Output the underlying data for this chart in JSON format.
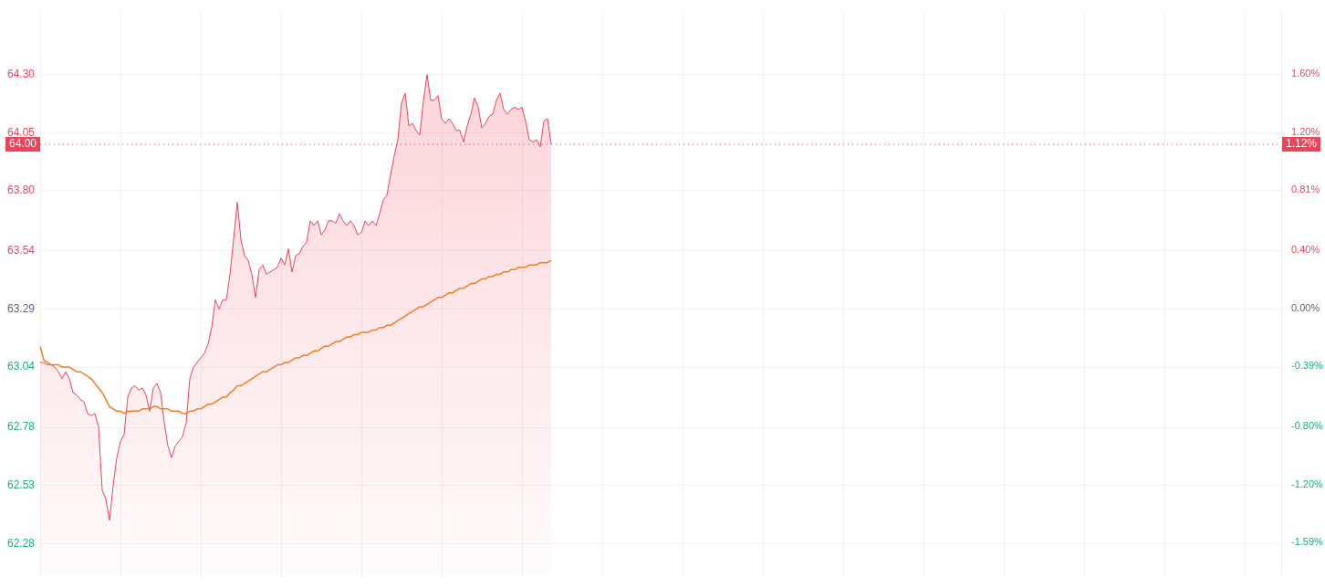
{
  "chart_data": {
    "type": "area",
    "categories": [
      null,
      null,
      null,
      null,
      null,
      null,
      null,
      null,
      null,
      null,
      null,
      null,
      null,
      null,
      null,
      null,
      null,
      null,
      null,
      null,
      null,
      null,
      null,
      null,
      null,
      null,
      null,
      null,
      null,
      null,
      null,
      null,
      null,
      null,
      null,
      null,
      null,
      null,
      null,
      null,
      null,
      null,
      null,
      null,
      null,
      null,
      null,
      null,
      null,
      null,
      null,
      null,
      null,
      null,
      null,
      null,
      null,
      null,
      null,
      null,
      null,
      null,
      null,
      null,
      null,
      null,
      null,
      null,
      null,
      null,
      null,
      null,
      null,
      null,
      null,
      null,
      null,
      null,
      null,
      null,
      null,
      null,
      null,
      null,
      null,
      null,
      null,
      null,
      null,
      null,
      null,
      null,
      null,
      null,
      null,
      null,
      null,
      null,
      null,
      null,
      null,
      null,
      null,
      null,
      null,
      null,
      null,
      null,
      null,
      null,
      null,
      null,
      null,
      null,
      null,
      null,
      null,
      null,
      null,
      null,
      null,
      null,
      null,
      null,
      null,
      null,
      null,
      null,
      null,
      null,
      null,
      null,
      null,
      null,
      null,
      null,
      null,
      null,
      null,
      null,
      null,
      null,
      null,
      null,
      null,
      null,
      null,
      null,
      null,
      null,
      null,
      null,
      null,
      null,
      null,
      null,
      null,
      null,
      null,
      null,
      null,
      null,
      null,
      null,
      null,
      null,
      null,
      null,
      null,
      null,
      null,
      null,
      null,
      null,
      null,
      null,
      null,
      null,
      null,
      null,
      null,
      null,
      null,
      null,
      null,
      null,
      null,
      null,
      null,
      null,
      null,
      null,
      null,
      null,
      null,
      null,
      null,
      null,
      null,
      null,
      null,
      null,
      null,
      null,
      null,
      null,
      null,
      null,
      null,
      null,
      null,
      null,
      null,
      null,
      null,
      null,
      null,
      null,
      null,
      null,
      null,
      null,
      null,
      null,
      null,
      null,
      null,
      null,
      null,
      null,
      null,
      null,
      null,
      null,
      null,
      null,
      null,
      null,
      null,
      null,
      null,
      null,
      null,
      null,
      null,
      null,
      null,
      null,
      null,
      null,
      null,
      null,
      null,
      null,
      null,
      null,
      null,
      null,
      null,
      null,
      null,
      null,
      null,
      null,
      null,
      null,
      null,
      null,
      null,
      null,
      null,
      null,
      null,
      null,
      null,
      null,
      null,
      null,
      null,
      null,
      null,
      null,
      null,
      null,
      null,
      null,
      null,
      null,
      null,
      null,
      null,
      null,
      null,
      null,
      null,
      null,
      null,
      null,
      null,
      null,
      null,
      null,
      null,
      null,
      null,
      null,
      null,
      null,
      null,
      null,
      null,
      null,
      null,
      null,
      null,
      null,
      null,
      null,
      null,
      null,
      null,
      null,
      null,
      null,
      null,
      null,
      null,
      null,
      null,
      null,
      null,
      null,
      null,
      null,
      null,
      null,
      null,
      null,
      null,
      null,
      null
    ],
    "series": [
      {
        "type": "area",
        "color": "#f0435a",
        "values": [
          63.06,
          63.06,
          63.05,
          63.05,
          63.04,
          63.02,
          62.99,
          63.02,
          62.99,
          62.93,
          62.92,
          62.9,
          62.89,
          62.84,
          62.83,
          62.84,
          62.78,
          62.51,
          62.47,
          62.38,
          62.53,
          62.65,
          62.72,
          62.75,
          62.91,
          62.95,
          62.96,
          62.94,
          62.95,
          62.92,
          62.85,
          62.95,
          62.97,
          62.93,
          62.8,
          62.7,
          62.65,
          62.7,
          62.72,
          62.74,
          62.8,
          62.99,
          63.04,
          63.06,
          63.08,
          63.1,
          63.14,
          63.21,
          63.33,
          63.29,
          63.33,
          63.33,
          63.44,
          63.59,
          63.75,
          63.59,
          63.52,
          63.5,
          63.44,
          63.34,
          63.46,
          63.48,
          63.44,
          63.45,
          63.46,
          63.47,
          63.51,
          63.48,
          63.55,
          63.45,
          63.52,
          63.53,
          63.56,
          63.58,
          63.67,
          63.65,
          63.67,
          63.61,
          63.63,
          63.67,
          63.67,
          63.66,
          63.7,
          63.67,
          63.65,
          63.67,
          63.65,
          63.61,
          63.62,
          63.67,
          63.65,
          63.67,
          63.65,
          63.7,
          63.76,
          63.78,
          63.87,
          63.95,
          64.02,
          64.18,
          64.22,
          64.08,
          64.09,
          64.06,
          64.04,
          64.19,
          64.3,
          64.19,
          64.19,
          64.21,
          64.11,
          64.09,
          64.11,
          64.09,
          64.06,
          64.06,
          64.01,
          64.08,
          64.13,
          64.2,
          64.16,
          64.07,
          64.09,
          64.12,
          64.13,
          64.19,
          64.22,
          64.15,
          64.13,
          64.15,
          64.16,
          64.15,
          64.16,
          64.1,
          64.02,
          64.01,
          64.02,
          63.99,
          64.1,
          64.11,
          64.0,
          null,
          null,
          null,
          null,
          null,
          null,
          null,
          null,
          null,
          null,
          null,
          null,
          null,
          null,
          null,
          null,
          null,
          null,
          null,
          null,
          null,
          null,
          null,
          null,
          null,
          null,
          null,
          null,
          null,
          null,
          null,
          null,
          null,
          null,
          null,
          null,
          null,
          null,
          null,
          null,
          null,
          null,
          null,
          null,
          null,
          null,
          null,
          null,
          null,
          null,
          null,
          null,
          null,
          null,
          null,
          null,
          null,
          null,
          null,
          null,
          null,
          null,
          null,
          null,
          null,
          null,
          null,
          null,
          null,
          null,
          null,
          null,
          null,
          null,
          null,
          null,
          null,
          null,
          null,
          null,
          null,
          null,
          null,
          null,
          null,
          null,
          null,
          null,
          null,
          null,
          null,
          null,
          null,
          null,
          null,
          null,
          null,
          null,
          null,
          null,
          null,
          null,
          null,
          null,
          null,
          null,
          null,
          null,
          null,
          null,
          null,
          null,
          null,
          null,
          null,
          null,
          null,
          null,
          null,
          null,
          null,
          null,
          null,
          null,
          null,
          null,
          null,
          null,
          null,
          null,
          null,
          null,
          null,
          null,
          null,
          null,
          null,
          null,
          null,
          null,
          null,
          null,
          null,
          null,
          null,
          null,
          null,
          null,
          null,
          null,
          null,
          null,
          null,
          null,
          null,
          null,
          null,
          null,
          null,
          null,
          null,
          null,
          null,
          null,
          null,
          null,
          null,
          null,
          null,
          null,
          null,
          null,
          null,
          null,
          null,
          null,
          null,
          null,
          null,
          null,
          null,
          null,
          null,
          null,
          null,
          null,
          null,
          null,
          null,
          null,
          null,
          null,
          null,
          null,
          null,
          null,
          null,
          null,
          null,
          null
        ]
      },
      {
        "type": "line",
        "color": "#f57c1f",
        "values": [
          63.13,
          63.07,
          63.06,
          63.05,
          63.05,
          63.05,
          63.04,
          63.04,
          63.04,
          63.03,
          63.02,
          63.02,
          63.01,
          63.0,
          62.99,
          62.97,
          62.95,
          62.93,
          62.9,
          62.87,
          62.86,
          62.85,
          62.85,
          62.84,
          62.85,
          62.85,
          62.85,
          62.85,
          62.86,
          62.86,
          62.86,
          62.87,
          62.87,
          62.86,
          62.86,
          62.86,
          62.85,
          62.85,
          62.85,
          62.84,
          62.84,
          62.85,
          62.85,
          62.86,
          62.86,
          62.87,
          62.88,
          62.88,
          62.89,
          62.9,
          62.91,
          62.91,
          62.93,
          62.94,
          62.96,
          62.96,
          62.97,
          62.98,
          62.99,
          63.0,
          63.01,
          63.02,
          63.02,
          63.03,
          63.04,
          63.05,
          63.05,
          63.06,
          63.06,
          63.07,
          63.08,
          63.08,
          63.09,
          63.09,
          63.1,
          63.11,
          63.11,
          63.12,
          63.13,
          63.13,
          63.14,
          63.15,
          63.15,
          63.16,
          63.17,
          63.17,
          63.18,
          63.18,
          63.19,
          63.19,
          63.19,
          63.2,
          63.2,
          63.21,
          63.21,
          63.22,
          63.22,
          63.23,
          63.24,
          63.25,
          63.26,
          63.27,
          63.28,
          63.29,
          63.3,
          63.3,
          63.31,
          63.32,
          63.33,
          63.34,
          63.34,
          63.35,
          63.36,
          63.36,
          63.37,
          63.38,
          63.38,
          63.39,
          63.4,
          63.4,
          63.41,
          63.42,
          63.42,
          63.43,
          63.43,
          63.44,
          63.44,
          63.45,
          63.45,
          63.46,
          63.46,
          63.47,
          63.47,
          63.47,
          63.48,
          63.48,
          63.48,
          63.49,
          63.49,
          63.49,
          63.5,
          null,
          null,
          null,
          null,
          null,
          null,
          null,
          null,
          null,
          null,
          null,
          null,
          null,
          null,
          null,
          null,
          null,
          null,
          null,
          null,
          null,
          null,
          null,
          null,
          null,
          null,
          null,
          null,
          null,
          null,
          null,
          null,
          null,
          null,
          null,
          null,
          null,
          null,
          null,
          null,
          null,
          null,
          null,
          null,
          null,
          null,
          null,
          null,
          null,
          null,
          null,
          null,
          null,
          null,
          null,
          null,
          null,
          null,
          null,
          null,
          null,
          null,
          null,
          null,
          null,
          null,
          null,
          null,
          null,
          null,
          null,
          null,
          null,
          null,
          null,
          null,
          null,
          null,
          null,
          null,
          null,
          null,
          null,
          null,
          null,
          null,
          null,
          null,
          null,
          null,
          null,
          null,
          null,
          null,
          null,
          null,
          null,
          null,
          null,
          null,
          null,
          null,
          null,
          null,
          null,
          null,
          null,
          null,
          null,
          null,
          null,
          null,
          null,
          null,
          null,
          null,
          null,
          null,
          null,
          null,
          null,
          null,
          null,
          null,
          null,
          null,
          null,
          null,
          null,
          null,
          null,
          null,
          null,
          null,
          null,
          null,
          null,
          null,
          null,
          null,
          null,
          null,
          null,
          null,
          null,
          null,
          null,
          null,
          null,
          null,
          null,
          null,
          null,
          null,
          null,
          null,
          null,
          null,
          null,
          null,
          null,
          null,
          null,
          null,
          null,
          null,
          null,
          null,
          null,
          null,
          null,
          null,
          null,
          null,
          null,
          null,
          null,
          null,
          null,
          null,
          null,
          null,
          null,
          null,
          null,
          null,
          null,
          null,
          null,
          null,
          null,
          null,
          null,
          null,
          null,
          null,
          null,
          null,
          null,
          null
        ]
      }
    ],
    "ylim": [
      62.14,
      64.57
    ],
    "yticks": [
      {
        "value": 64.3,
        "label": "64.30"
      },
      {
        "value": 64.05,
        "label": "64.05"
      },
      {
        "value": 63.8,
        "label": "63.80"
      },
      {
        "value": 63.54,
        "label": "63.54"
      },
      {
        "value": 63.29,
        "label": "63.29"
      },
      {
        "value": 63.04,
        "label": "63.04"
      },
      {
        "value": 62.78,
        "label": "62.78"
      },
      {
        "value": 62.53,
        "label": "62.53"
      },
      {
        "value": 62.28,
        "label": "62.28"
      }
    ],
    "y2lim": [
      -1.82,
      2.02
    ],
    "y2ticks": [
      {
        "value": 1.6,
        "label": "1.60%"
      },
      {
        "value": 1.2,
        "label": "1.20%"
      },
      {
        "value": 0.81,
        "label": "0.81%"
      },
      {
        "value": 0.4,
        "label": "0.40%"
      },
      {
        "value": 0,
        "label": "0.00%"
      },
      {
        "value": -0.39,
        "label": "-0.39%"
      },
      {
        "value": -0.8,
        "label": "-0.80%"
      },
      {
        "value": -1.2,
        "label": "-1.20%"
      },
      {
        "value": -1.59,
        "label": "-1.59%"
      }
    ],
    "ref_lines": [
      {
        "axis": "y",
        "value": 64.0,
        "label": "64.00",
        "color": "#f0435a",
        "line_style": "dotted"
      }
    ],
    "annotations": [
      {
        "text": "1.12%",
        "y": 64.0
      }
    ],
    "grid": true
  }
}
